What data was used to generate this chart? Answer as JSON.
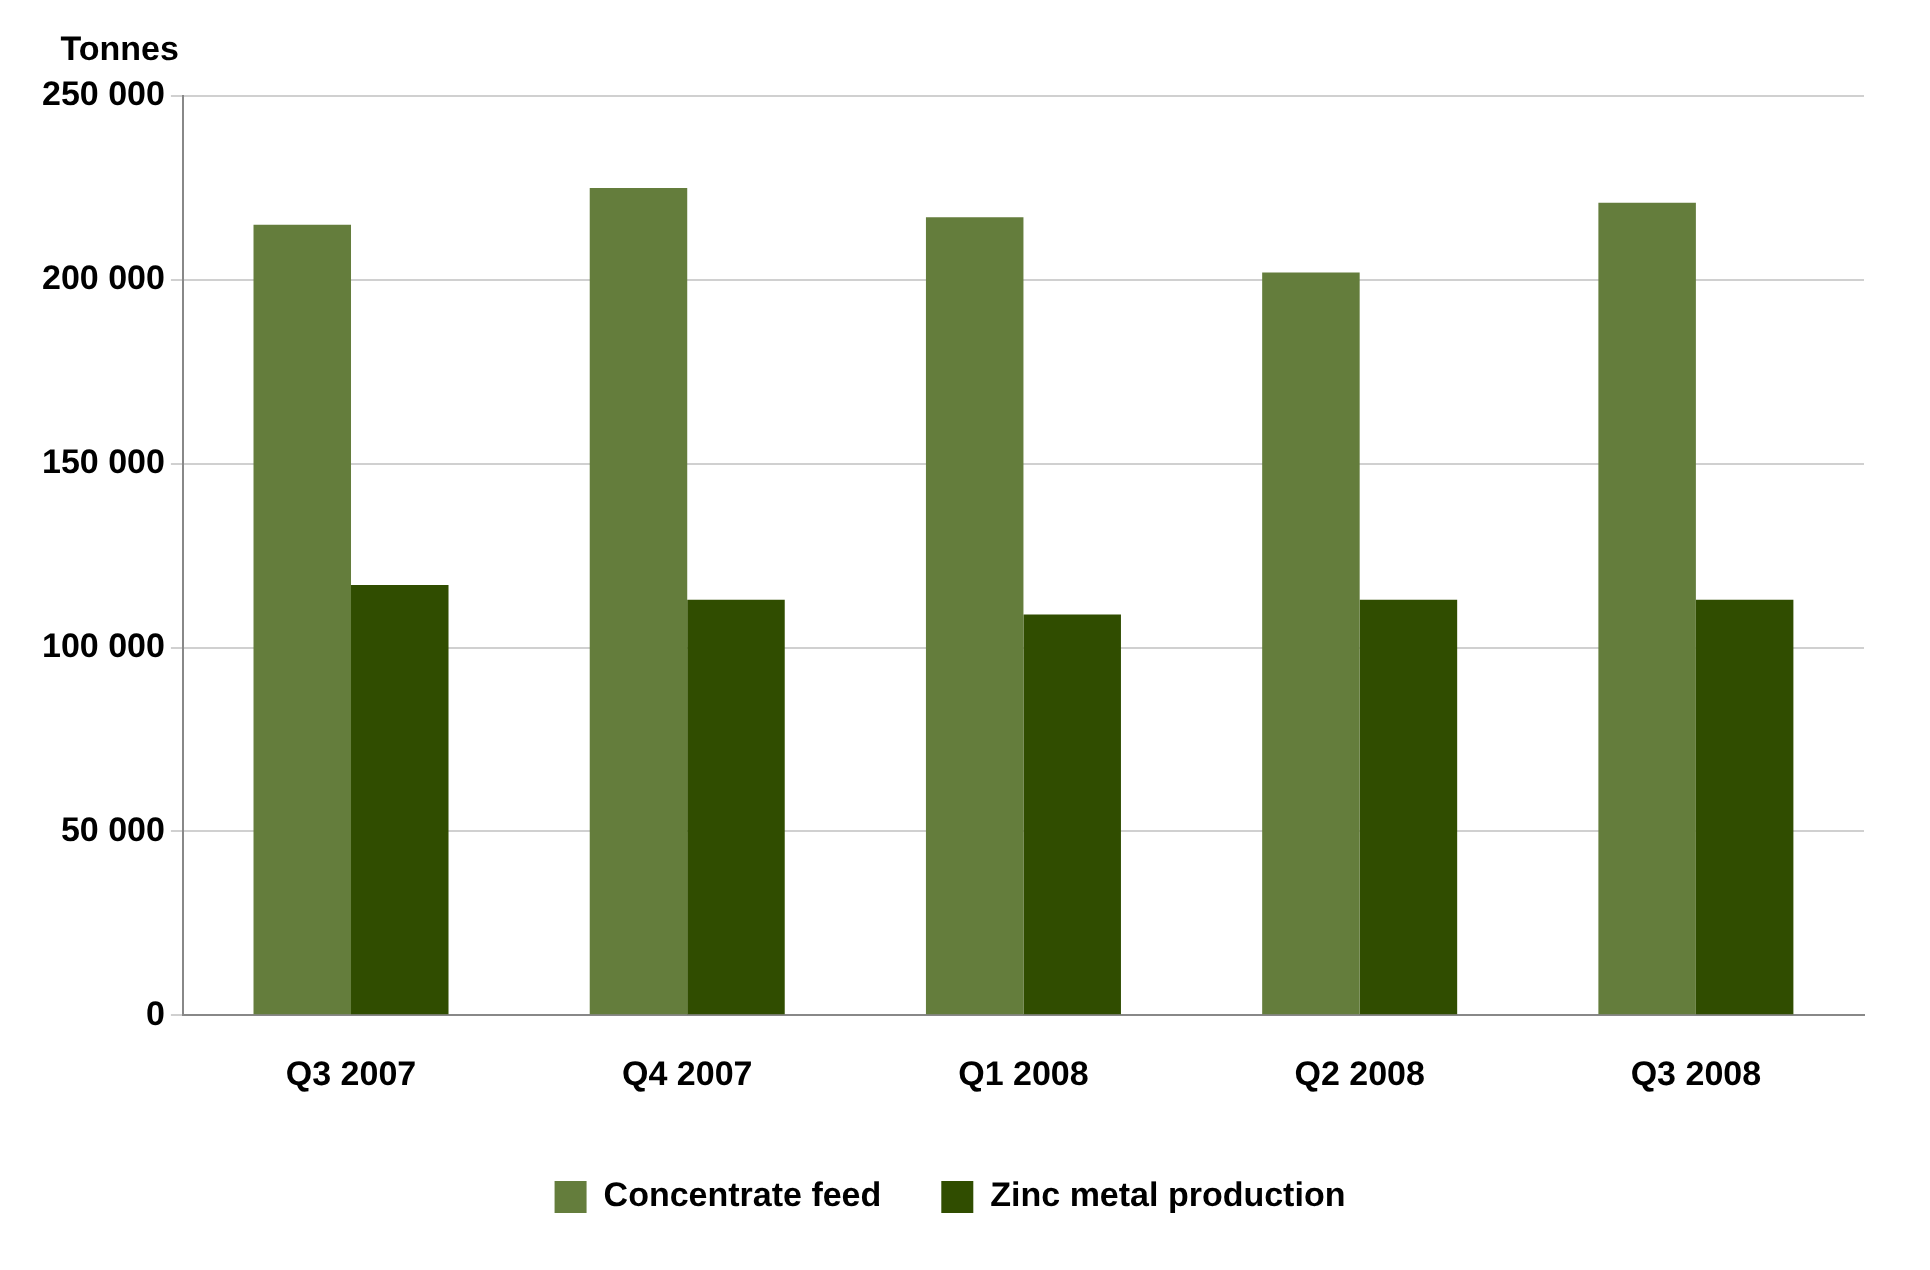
{
  "chart_data": {
    "type": "bar",
    "ylabel": "Tonnes",
    "categories": [
      "Q3 2007",
      "Q4 2007",
      "Q1 2008",
      "Q2 2008",
      "Q3 2008"
    ],
    "series": [
      {
        "name": "Concentrate feed",
        "color": "#647d3c",
        "values": [
          215000,
          225000,
          217000,
          202000,
          221000
        ]
      },
      {
        "name": "Zinc metal production",
        "color": "#304d00",
        "values": [
          117000,
          113000,
          109000,
          113000,
          113000
        ]
      }
    ],
    "ylim": [
      0,
      250000
    ],
    "yticks": [
      {
        "value": 0,
        "label": "0"
      },
      {
        "value": 50000,
        "label": "50 000"
      },
      {
        "value": 100000,
        "label": "100 000"
      },
      {
        "value": 150000,
        "label": "150 000"
      },
      {
        "value": 200000,
        "label": "200 000"
      },
      {
        "value": 250000,
        "label": "250 000"
      }
    ],
    "grid": "y",
    "legend": "bottom"
  }
}
